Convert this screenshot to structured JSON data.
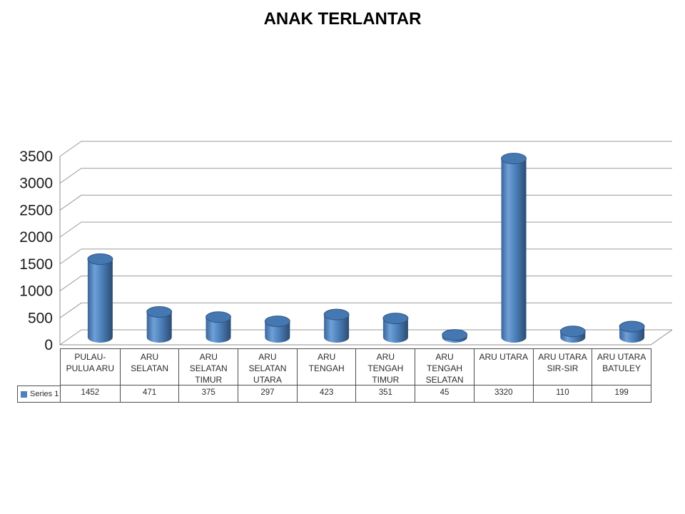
{
  "page": {
    "background": "#ffffff"
  },
  "chart_data": {
    "type": "bar",
    "subtype": "3d-cylinder",
    "title": "ANAK TERLANTAR",
    "xlabel": "",
    "ylabel": "",
    "grid": true,
    "legend_position": "data-table-left",
    "data_table_shown": true,
    "ylim": [
      0,
      3500
    ],
    "yticks": [
      0,
      500,
      1000,
      1500,
      2000,
      2500,
      3000,
      3500
    ],
    "categories": [
      "PULAU-PULUA ARU",
      "ARU SELATAN",
      "ARU SELATAN TIMUR",
      "ARU SELATAN UTARA",
      "ARU TENGAH",
      "ARU TENGAH TIMUR",
      "ARU TENGAH SELATAN",
      "ARU UTARA",
      "ARU UTARA SIR-SIR",
      "ARU UTARA BATULEY"
    ],
    "category_label_lines": [
      [
        "PULAU-",
        "PULUA ARU"
      ],
      [
        "ARU",
        "SELATAN"
      ],
      [
        "ARU",
        "SELATAN",
        "TIMUR"
      ],
      [
        "ARU",
        "SELATAN",
        "UTARA"
      ],
      [
        "ARU",
        "TENGAH"
      ],
      [
        "ARU",
        "TENGAH",
        "TIMUR"
      ],
      [
        "ARU",
        "TENGAH",
        "SELATAN"
      ],
      [
        "ARU UTARA"
      ],
      [
        "ARU UTARA",
        "SIR-SIR"
      ],
      [
        "ARU UTARA",
        "BATULEY"
      ]
    ],
    "series": [
      {
        "name": "Series 1",
        "values": [
          1452,
          471,
          375,
          297,
          423,
          351,
          45,
          3320,
          110,
          199
        ]
      }
    ],
    "colors": {
      "bar_base": "#4F81BD",
      "body_gradient": [
        "#3A659B",
        "#6FA0D6",
        "#4E82BC",
        "#2B4C72"
      ],
      "body_gradient_offsets": [
        0,
        0.28,
        0.55,
        1
      ],
      "top_face": "#4577B1",
      "top_rim": "#2A5182",
      "gridline": "#9A9A9A",
      "axis": "#8C8C8C",
      "table_border": "#4D4D4D",
      "text": "#2B2B2B"
    }
  }
}
